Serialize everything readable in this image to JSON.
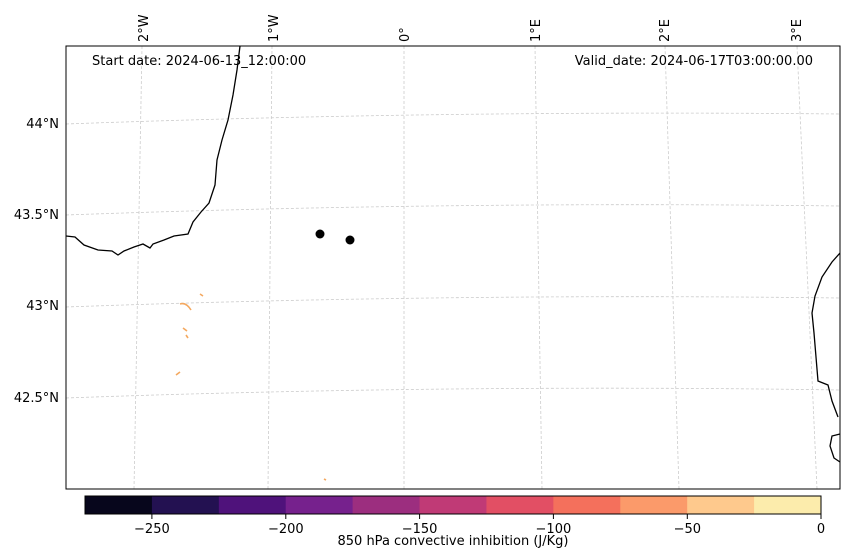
{
  "header": {
    "start_date": "Start date: 2024-06-13_12:00:00",
    "valid_date": "Valid_date: 2024-06-17T03:00:00.00"
  },
  "map": {
    "longitude_labels": [
      "2°W",
      "1°W",
      "0°",
      "1°E",
      "2°E",
      "3°E"
    ],
    "latitude_labels": [
      "44°N",
      "43.5°N",
      "43°N",
      "42.5°N"
    ],
    "gridline_color": "#cccccc",
    "coastline_color": "#000000",
    "markers": [
      {
        "name": "marker-1",
        "color": "#000000"
      },
      {
        "name": "marker-2",
        "color": "#000000"
      }
    ],
    "cin_patch_color": "#f4a85f"
  },
  "colorbar": {
    "label": "850 hPa convective inhibition (J/Kg)",
    "tick_labels": [
      "−250",
      "−200",
      "−150",
      "−100",
      "−50",
      "0"
    ],
    "colors": [
      "#07061c",
      "#231151",
      "#4f127b",
      "#76218d",
      "#9c2e7f",
      "#c03a76",
      "#e24f64",
      "#f4705c",
      "#fb9a6a",
      "#fec98d",
      "#fcecac"
    ]
  }
}
